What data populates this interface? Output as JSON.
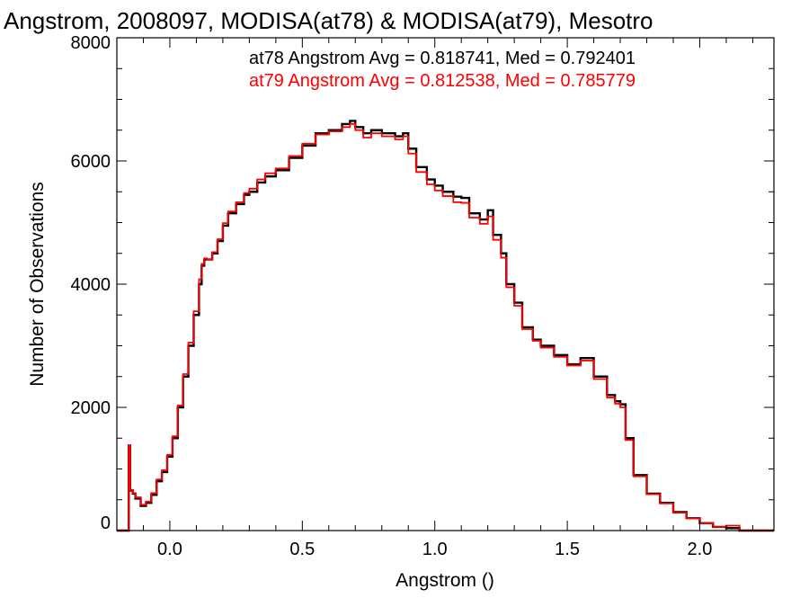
{
  "chart_data": {
    "type": "line",
    "title": "Angstrom, 2008097, MODISA(at78) & MODISA(at79), Mesotro",
    "xlabel": "Angstrom ()",
    "ylabel": "Number of Observations",
    "xlim": [
      -0.2,
      2.28
    ],
    "ylim": [
      0,
      8000
    ],
    "grid": false,
    "step_style": "histogram",
    "x_ticks": [
      {
        "value": 0.0,
        "label": "0.0"
      },
      {
        "value": 0.5,
        "label": "0.5"
      },
      {
        "value": 1.0,
        "label": "1.0"
      },
      {
        "value": 1.5,
        "label": "1.5"
      },
      {
        "value": 2.0,
        "label": "2.0"
      }
    ],
    "y_ticks": [
      {
        "value": 0,
        "label": "0"
      },
      {
        "value": 2000,
        "label": "2000"
      },
      {
        "value": 4000,
        "label": "4000"
      },
      {
        "value": 6000,
        "label": "6000"
      },
      {
        "value": 8000,
        "label": "8000"
      }
    ],
    "legend_placement": "top-right",
    "annotations": [
      {
        "text": "at78 Angstrom Avg = 0.818741, Med = 0.792401",
        "color": "#000000"
      },
      {
        "text": "at79 Angstrom Avg = 0.812538, Med = 0.785779",
        "color": "#ff0000"
      }
    ],
    "series": [
      {
        "color": "#000000",
        "x": [
          -0.2,
          -0.16,
          -0.155,
          -0.15,
          -0.14,
          -0.13,
          -0.11,
          -0.09,
          -0.07,
          -0.05,
          -0.03,
          -0.01,
          0.01,
          0.03,
          0.05,
          0.07,
          0.09,
          0.11,
          0.12,
          0.13,
          0.14,
          0.16,
          0.18,
          0.2,
          0.22,
          0.25,
          0.28,
          0.3,
          0.33,
          0.36,
          0.4,
          0.45,
          0.5,
          0.55,
          0.6,
          0.65,
          0.68,
          0.7,
          0.73,
          0.76,
          0.8,
          0.85,
          0.88,
          0.9,
          0.93,
          0.97,
          1.0,
          1.03,
          1.07,
          1.1,
          1.13,
          1.17,
          1.2,
          1.22,
          1.25,
          1.27,
          1.3,
          1.33,
          1.37,
          1.4,
          1.45,
          1.5,
          1.55,
          1.6,
          1.65,
          1.68,
          1.7,
          1.72,
          1.75,
          1.8,
          1.85,
          1.9,
          1.95,
          2.0,
          2.05,
          2.1,
          2.15,
          2.2,
          2.28
        ],
        "values": [
          0,
          0,
          1380,
          650,
          600,
          520,
          400,
          450,
          580,
          800,
          950,
          1200,
          1500,
          2000,
          2500,
          3000,
          3500,
          4000,
          4300,
          4400,
          4400,
          4500,
          4700,
          4950,
          5150,
          5300,
          5450,
          5500,
          5650,
          5750,
          5850,
          6050,
          6250,
          6450,
          6500,
          6600,
          6650,
          6550,
          6450,
          6500,
          6450,
          6400,
          6450,
          6200,
          5900,
          5700,
          5600,
          5500,
          5420,
          5400,
          5150,
          5050,
          5200,
          4800,
          4500,
          4000,
          3700,
          3300,
          3100,
          3000,
          2850,
          2700,
          2800,
          2500,
          2200,
          2100,
          2050,
          1500,
          900,
          600,
          450,
          300,
          200,
          120,
          60,
          40,
          0,
          0,
          0
        ]
      },
      {
        "color": "#ff0000",
        "x": [
          -0.2,
          -0.16,
          -0.155,
          -0.15,
          -0.14,
          -0.13,
          -0.11,
          -0.09,
          -0.07,
          -0.05,
          -0.03,
          -0.01,
          0.01,
          0.03,
          0.05,
          0.07,
          0.09,
          0.11,
          0.12,
          0.13,
          0.14,
          0.16,
          0.18,
          0.2,
          0.22,
          0.25,
          0.28,
          0.3,
          0.33,
          0.36,
          0.4,
          0.45,
          0.5,
          0.55,
          0.6,
          0.65,
          0.68,
          0.7,
          0.73,
          0.76,
          0.8,
          0.85,
          0.88,
          0.9,
          0.93,
          0.97,
          1.0,
          1.03,
          1.07,
          1.1,
          1.13,
          1.17,
          1.2,
          1.22,
          1.25,
          1.27,
          1.3,
          1.33,
          1.37,
          1.4,
          1.45,
          1.5,
          1.55,
          1.6,
          1.65,
          1.68,
          1.7,
          1.72,
          1.75,
          1.8,
          1.85,
          1.9,
          1.95,
          2.0,
          2.05,
          2.1,
          2.15,
          2.2,
          2.28
        ],
        "values": [
          0,
          0,
          1380,
          660,
          610,
          540,
          420,
          470,
          610,
          830,
          980,
          1230,
          1530,
          2030,
          2540,
          3050,
          3560,
          4080,
          4330,
          4420,
          4400,
          4520,
          4730,
          4990,
          5180,
          5330,
          5480,
          5550,
          5700,
          5800,
          5880,
          6080,
          6280,
          6430,
          6480,
          6550,
          6600,
          6500,
          6380,
          6450,
          6400,
          6350,
          6400,
          6120,
          5820,
          5620,
          5520,
          5430,
          5330,
          5320,
          5080,
          4980,
          5100,
          4720,
          4430,
          3950,
          3650,
          3270,
          3080,
          2970,
          2820,
          2680,
          2760,
          2460,
          2160,
          2060,
          2000,
          1470,
          880,
          590,
          440,
          290,
          195,
          118,
          58,
          80,
          0,
          0,
          0
        ]
      }
    ]
  }
}
